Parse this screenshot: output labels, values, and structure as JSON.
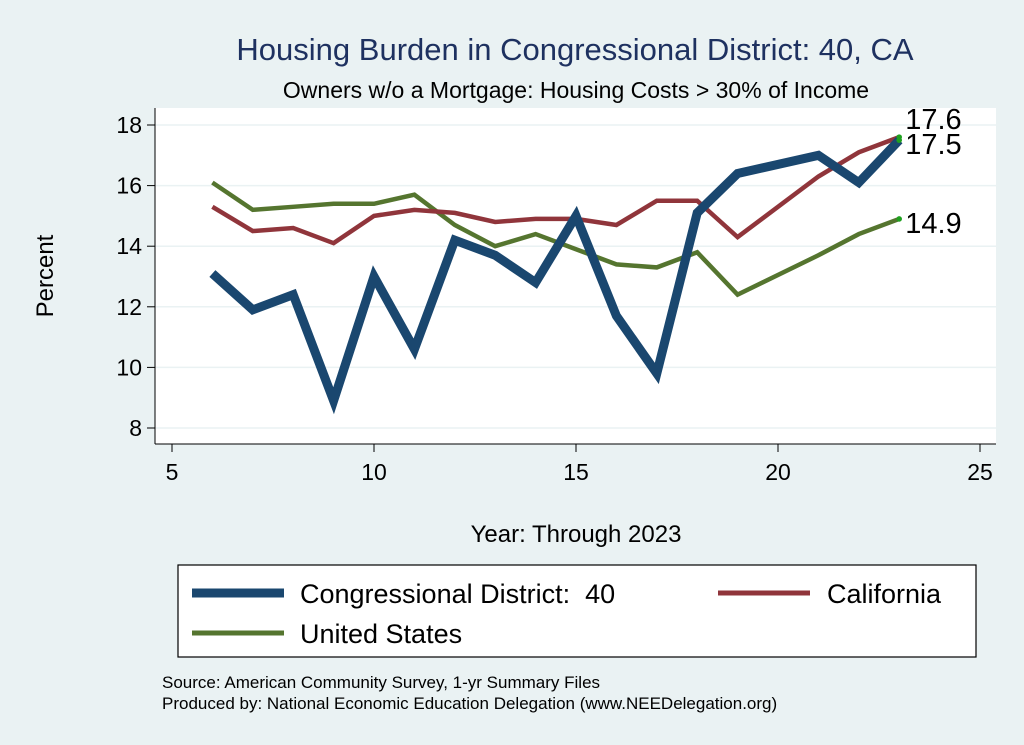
{
  "chart_data": {
    "type": "line",
    "title": "Housing Burden in Congressional District:  40, CA",
    "subtitle": "Owners w/o a Mortgage: Housing Costs > 30% of Income",
    "xlabel": "Year: Through 2023",
    "ylabel": "Percent",
    "xlim": [
      5,
      25
    ],
    "ylim": [
      8,
      18
    ],
    "xticks": [
      5,
      10,
      15,
      20,
      25
    ],
    "yticks": [
      8,
      10,
      12,
      14,
      16,
      18
    ],
    "series": [
      {
        "name": "Congressional District:  40",
        "color": "#1a476f",
        "x": [
          6,
          7,
          8,
          9,
          10,
          11,
          12,
          13,
          14,
          15,
          16,
          17,
          18,
          19,
          21,
          22,
          23
        ],
        "values": [
          13.1,
          11.9,
          12.4,
          8.9,
          13.0,
          10.6,
          14.2,
          13.7,
          12.8,
          15.0,
          11.7,
          9.8,
          15.1,
          16.4,
          17.0,
          16.1,
          17.5
        ],
        "end_label": "17.5"
      },
      {
        "name": "California",
        "color": "#90353b",
        "x": [
          6,
          7,
          8,
          9,
          10,
          11,
          12,
          13,
          14,
          15,
          16,
          17,
          18,
          19,
          21,
          22,
          23
        ],
        "values": [
          15.3,
          14.5,
          14.6,
          14.1,
          15.0,
          15.2,
          15.1,
          14.8,
          14.9,
          14.9,
          14.7,
          15.5,
          15.5,
          14.3,
          16.3,
          17.1,
          17.6
        ],
        "end_label": "17.6"
      },
      {
        "name": "United States",
        "color": "#55752f",
        "x": [
          6,
          7,
          8,
          9,
          10,
          11,
          12,
          13,
          14,
          15,
          16,
          17,
          18,
          19,
          21,
          22,
          23
        ],
        "values": [
          16.1,
          15.2,
          15.3,
          15.4,
          15.4,
          15.7,
          14.7,
          14.0,
          14.4,
          13.9,
          13.4,
          13.3,
          13.8,
          12.4,
          13.7,
          14.4,
          14.9
        ],
        "end_label": "14.9"
      }
    ],
    "legend_position": "bottom",
    "source_lines": [
      "Source: American Community Survey, 1-yr Summary Files",
      "Produced by: National Economic Education Delegation (www.NEEDelegation.org)"
    ]
  },
  "colors": {
    "page_background": "#eaf2f3",
    "plot_background": "#ffffff",
    "title_color": "#1e3160",
    "end_dot": "#1fa01f"
  }
}
